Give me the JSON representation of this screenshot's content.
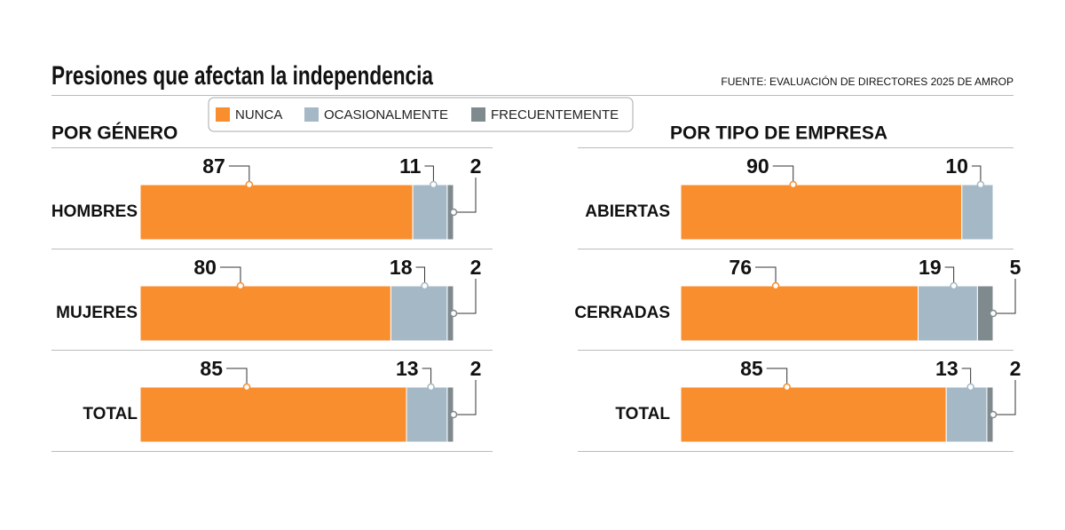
{
  "header": {
    "title": "Presiones que afectan la independencia",
    "source": "FUENTE: EVALUACIÓN DE DIRECTORES 2025 DE AMROP"
  },
  "legend": [
    {
      "name": "NUNCA",
      "color": "#f98e2f"
    },
    {
      "name": "OCASIONALMENTE",
      "color": "#a5b8c6"
    },
    {
      "name": "FRECUENTEMENTE",
      "color": "#7f8a8e"
    }
  ],
  "chart_data": [
    {
      "type": "bar",
      "orientation": "horizontal",
      "stacked": true,
      "title": "POR GÉNERO",
      "categories": [
        "HOMBRES",
        "MUJERES",
        "TOTAL"
      ],
      "xlim": [
        0,
        100
      ],
      "series": [
        {
          "values": [
            87,
            80,
            85
          ]
        },
        {
          "values": [
            11,
            18,
            13
          ]
        },
        {
          "values": [
            2,
            2,
            2
          ]
        }
      ]
    },
    {
      "type": "bar",
      "orientation": "horizontal",
      "stacked": true,
      "title": "POR TIPO DE EMPRESA",
      "categories": [
        "ABIERTAS",
        "CERRADAS",
        "TOTAL"
      ],
      "xlim": [
        0,
        100
      ],
      "series": [
        {
          "values": [
            90,
            76,
            85
          ]
        },
        {
          "values": [
            10,
            19,
            13
          ]
        },
        {
          "values": [
            null,
            5,
            2
          ]
        }
      ]
    }
  ]
}
